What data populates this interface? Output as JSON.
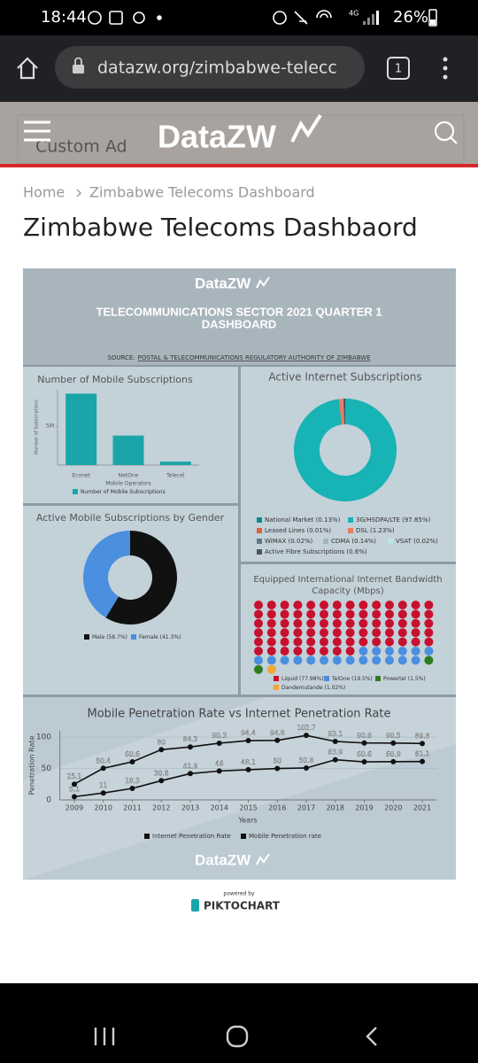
{
  "status_bar": {
    "time": "18:44",
    "network": "4G",
    "battery": "26%"
  },
  "browser": {
    "url": "datazw.org/zimbabwe-telecc",
    "tabs": "1"
  },
  "site": {
    "ad": "Custom Ad",
    "logo": "DataZW"
  },
  "breadcrumb": {
    "home": "Home",
    "current": "Zimbabwe Telecoms Dashboard"
  },
  "page_title": "Zimbabwe Telecoms Dashbaord",
  "infographic": {
    "logo": "DataZW",
    "title": [
      "TELECOMMUNICATIONS SECTOR 2021 QUARTER 1",
      "DASHBOARD"
    ],
    "source_label": "SOURCE:",
    "source": "POSTAL & TELECOMMUNICATIONS  REGULATORY AUTHORITY OF ZIMBABWE",
    "footer_logo": "DataZW"
  },
  "chart_data": [
    {
      "type": "bar",
      "title": "Number of Mobile Subscriptions",
      "x_label": "Mobile Operators",
      "y_label": "Number of Subscriptions",
      "categories": [
        "Econet",
        "NetOne",
        "Telecel"
      ],
      "series": [
        {
          "name": "Number of Mobile Subscriptions",
          "color": "#1aa6a8",
          "values": [
            9200000,
            3800000,
            450000
          ]
        }
      ],
      "ylim": [
        0,
        9700000
      ],
      "yticks": [
        {
          "value": 5000000,
          "label": "5M"
        }
      ]
    },
    {
      "type": "donut",
      "title": "Active Internet Subscriptions",
      "categories": [
        "National Market",
        "3G/HSDPA/LTE",
        "Leased Lines",
        "DSL",
        "WiMAX",
        "CDMA",
        "VSAT",
        "Active Fibre Subscriptions"
      ],
      "values": [
        0.13,
        97.85,
        0.01,
        1.23,
        0.02,
        0.14,
        0.02,
        0.6
      ],
      "value_labels": [
        "(0.13%)",
        "(97.85%)",
        "(0.01%)",
        "(1.23%)",
        "(0.02%)",
        "(0.14%)",
        "(0.02%)",
        "(0.6%)"
      ],
      "colors": [
        "#0e8c8c",
        "#17b3b5",
        "#d9633e",
        "#ec7b5c",
        "#5c7a86",
        "#9fb5bd",
        "#bfe4e2",
        "#4a5459"
      ]
    },
    {
      "type": "donut",
      "title": "Active Mobile Subscriptions by Gender",
      "categories": [
        "Male",
        "Female"
      ],
      "values": [
        58.7,
        41.3
      ],
      "value_labels": [
        "(58.7%)",
        "(41.3%)"
      ],
      "colors": [
        "#111111",
        "#4a8fe0"
      ]
    },
    {
      "type": "waffle",
      "title": [
        "Equipped International Internet Bandwidth",
        "Capacity (Mbps)"
      ],
      "categories": [
        "Liquid",
        "TelOne",
        "Powertel",
        "Dandemutande"
      ],
      "values": [
        77.98,
        19.5,
        1.5,
        1.02
      ],
      "value_labels": [
        "(77.98%)",
        "(19.5%)",
        "(1.5%)",
        "(1.02%)"
      ],
      "colors": [
        "#c8102e",
        "#4a8fe0",
        "#2e7d1e",
        "#f0a830"
      ]
    },
    {
      "type": "line",
      "title": "Mobile Penetration Rate vs Internet Penetration Rate",
      "x_label": "Years",
      "y_label": "Penetration Rate",
      "x": [
        2009,
        2010,
        2011,
        2012,
        2013,
        2014,
        2015,
        2016,
        2017,
        2018,
        2019,
        2020,
        2021
      ],
      "xticks": [
        2009,
        2010,
        2011,
        2012,
        2013,
        2014,
        2015,
        2016,
        2017,
        2018,
        2019,
        2020,
        2021
      ],
      "xlim": [
        2008.5,
        2021.5
      ],
      "ylim": [
        0,
        110
      ],
      "yticks": [
        0,
        50,
        100
      ],
      "grid": true,
      "series": [
        {
          "name": "Internet Penetration Rate",
          "color": "#111111",
          "values": [
            5.1,
            11,
            18.3,
            30.6,
            41.9,
            46,
            48.1,
            50,
            50.8,
            63.9,
            60.6,
            60.9,
            61.1
          ]
        },
        {
          "name": "Mobile Penetration rate",
          "color": "#111111",
          "values": [
            25.1,
            50.4,
            60.6,
            80,
            84.3,
            90.3,
            94.4,
            94.8,
            102.7,
            93.1,
            90.6,
            90.5,
            89.8
          ]
        }
      ]
    }
  ],
  "footer": {
    "powered_by": "powered by",
    "brand": "PIKTOCHART"
  }
}
